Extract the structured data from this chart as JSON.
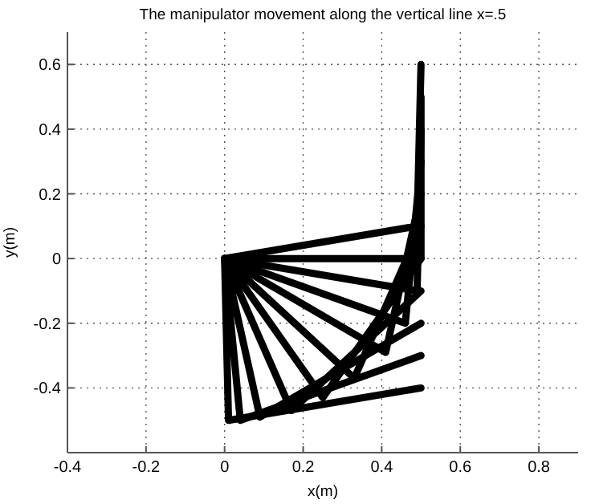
{
  "chart_data": {
    "type": "line",
    "title": "The manipulator movement along the vertical line x=.5",
    "xlabel": "x(m)",
    "ylabel": "y(m)",
    "xlim": [
      -0.4,
      0.9
    ],
    "ylim": [
      -0.6,
      0.7
    ],
    "xticks": [
      -0.4,
      -0.2,
      0,
      0.2,
      0.4,
      0.6,
      0.8
    ],
    "yticks": [
      -0.4,
      -0.2,
      0,
      0.2,
      0.4,
      0.6
    ],
    "grid": true,
    "marker": "none",
    "line_style": "solid",
    "series": [
      {
        "color": "#000000",
        "x": [
          0,
          0.49,
          0.5
        ],
        "values": [
          0,
          0.1,
          0.6
        ]
      },
      {
        "color": "#000000",
        "x": [
          0,
          0.5,
          0.5
        ],
        "values": [
          0,
          0,
          0.5
        ]
      },
      {
        "color": "#000000",
        "x": [
          0,
          0.49,
          0.5
        ],
        "values": [
          0,
          -0.1,
          0.4
        ]
      },
      {
        "color": "#000000",
        "x": [
          0,
          0.46,
          0.5
        ],
        "values": [
          0,
          -0.2,
          0.3
        ]
      },
      {
        "color": "#000000",
        "x": [
          0,
          0.41,
          0.5
        ],
        "values": [
          0,
          -0.29,
          0.2
        ]
      },
      {
        "color": "#000000",
        "x": [
          0,
          0.33,
          0.5
        ],
        "values": [
          0,
          -0.37,
          0.1
        ]
      },
      {
        "color": "#000000",
        "x": [
          0,
          0.25,
          0.5
        ],
        "values": [
          0,
          -0.43,
          0
        ]
      },
      {
        "color": "#000000",
        "x": [
          0,
          0.17,
          0.5
        ],
        "values": [
          0,
          -0.47,
          -0.1
        ]
      },
      {
        "color": "#000000",
        "x": [
          0,
          0.09,
          0.5
        ],
        "values": [
          0,
          -0.49,
          -0.2
        ]
      },
      {
        "color": "#000000",
        "x": [
          0,
          0.04,
          0.5
        ],
        "values": [
          0,
          -0.5,
          -0.3
        ]
      },
      {
        "color": "#000000",
        "x": [
          0,
          0.01,
          0.5
        ],
        "values": [
          0,
          -0.5,
          -0.4
        ]
      }
    ]
  }
}
